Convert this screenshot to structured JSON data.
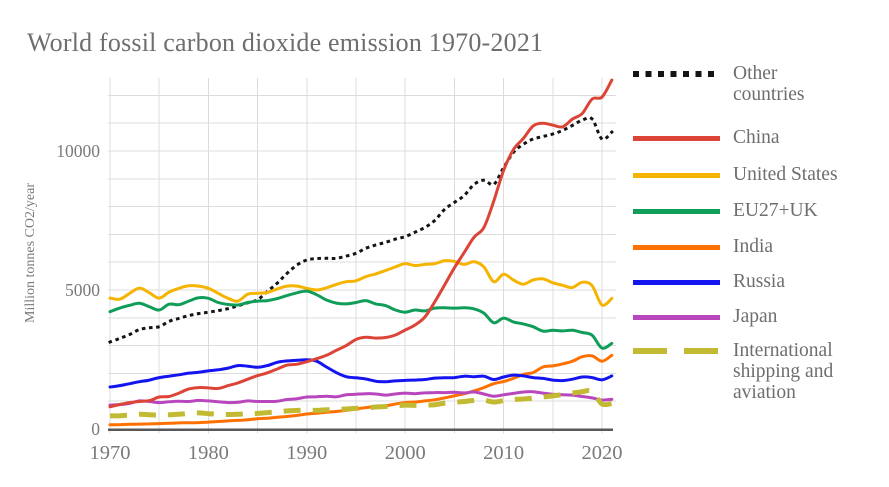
{
  "title": "World fossil carbon dioxide emission 1970-2021",
  "y_axis": {
    "label": "Million tonnes CO2/year",
    "ticks": [
      0,
      5000,
      10000
    ]
  },
  "x_axis": {
    "ticks": [
      1970,
      1980,
      1990,
      2000,
      2010,
      2020
    ]
  },
  "chart_data": {
    "type": "line",
    "title": "World fossil carbon dioxide emission 1970-2021",
    "xlabel": "",
    "ylabel": "Million tonnes CO2/year",
    "x_range": [
      1970,
      2021
    ],
    "ylim": [
      0,
      12620
    ],
    "grid": true,
    "legend_position": "right",
    "axis_color": "#58585a",
    "grid_color": "#dcdcdc",
    "text_color": "#7a7a7a",
    "years_start": 1970,
    "series": [
      {
        "name": "Other countries",
        "color": "#141414",
        "style": "dotted",
        "values": [
          3130,
          3260,
          3400,
          3580,
          3640,
          3680,
          3870,
          3980,
          4080,
          4150,
          4200,
          4260,
          4330,
          4430,
          4540,
          4650,
          4950,
          5250,
          5600,
          5900,
          6080,
          6130,
          6140,
          6140,
          6220,
          6320,
          6500,
          6620,
          6715,
          6830,
          6920,
          7080,
          7250,
          7500,
          7900,
          8150,
          8400,
          8800,
          8950,
          8800,
          9400,
          9950,
          10240,
          10430,
          10520,
          10610,
          10740,
          10920,
          11110,
          11150,
          10430,
          10680
        ]
      },
      {
        "name": "China",
        "color": "#dc4437",
        "style": "solid",
        "values": [
          800,
          880,
          950,
          990,
          1020,
          1150,
          1170,
          1290,
          1440,
          1490,
          1480,
          1460,
          1560,
          1660,
          1790,
          1920,
          2020,
          2160,
          2300,
          2330,
          2420,
          2530,
          2650,
          2830,
          3000,
          3220,
          3300,
          3270,
          3290,
          3380,
          3560,
          3740,
          4030,
          4570,
          5180,
          5800,
          6350,
          6900,
          7250,
          8200,
          9300,
          10050,
          10450,
          10900,
          11000,
          10930,
          10870,
          11150,
          11350,
          11870,
          11940,
          12550
        ]
      },
      {
        "name": "United States",
        "color": "#f5b400",
        "style": "solid",
        "values": [
          4710,
          4670,
          4880,
          5070,
          4900,
          4710,
          4920,
          5060,
          5150,
          5140,
          5060,
          4880,
          4700,
          4600,
          4850,
          4880,
          4910,
          5040,
          5140,
          5140,
          5060,
          5000,
          5080,
          5200,
          5300,
          5330,
          5480,
          5580,
          5700,
          5830,
          5950,
          5880,
          5920,
          5950,
          6050,
          6030,
          5920,
          6020,
          5830,
          5300,
          5570,
          5360,
          5210,
          5360,
          5400,
          5260,
          5170,
          5090,
          5280,
          5150,
          4460,
          4700
        ]
      },
      {
        "name": "EU27+UK",
        "color": "#109d58",
        "style": "solid",
        "values": [
          4220,
          4350,
          4450,
          4520,
          4400,
          4280,
          4490,
          4470,
          4600,
          4720,
          4700,
          4550,
          4480,
          4460,
          4550,
          4600,
          4620,
          4690,
          4800,
          4900,
          4960,
          4830,
          4640,
          4530,
          4500,
          4550,
          4620,
          4500,
          4440,
          4280,
          4200,
          4280,
          4250,
          4350,
          4360,
          4350,
          4360,
          4320,
          4170,
          3820,
          3990,
          3850,
          3780,
          3680,
          3520,
          3550,
          3530,
          3550,
          3470,
          3370,
          2910,
          3080
        ]
      },
      {
        "name": "India",
        "color": "#fe7100",
        "style": "solid",
        "values": [
          150,
          160,
          170,
          175,
          185,
          195,
          205,
          220,
          225,
          230,
          250,
          270,
          290,
          310,
          330,
          370,
          390,
          420,
          450,
          490,
          540,
          570,
          600,
          630,
          670,
          720,
          770,
          810,
          830,
          900,
          950,
          970,
          1010,
          1050,
          1120,
          1190,
          1270,
          1370,
          1490,
          1630,
          1710,
          1820,
          1960,
          2030,
          2230,
          2270,
          2340,
          2440,
          2600,
          2630,
          2440,
          2650
        ]
      },
      {
        "name": "Russia",
        "color": "#1414f0",
        "style": "solid",
        "values": [
          1510,
          1560,
          1630,
          1700,
          1760,
          1850,
          1900,
          1950,
          2010,
          2040,
          2090,
          2130,
          2190,
          2280,
          2260,
          2220,
          2280,
          2400,
          2450,
          2470,
          2490,
          2440,
          2230,
          2030,
          1880,
          1840,
          1800,
          1720,
          1700,
          1730,
          1750,
          1760,
          1780,
          1830,
          1840,
          1850,
          1900,
          1880,
          1900,
          1780,
          1870,
          1940,
          1910,
          1850,
          1820,
          1760,
          1740,
          1790,
          1870,
          1850,
          1770,
          1910
        ]
      },
      {
        "name": "Japan",
        "color": "#b847bd",
        "style": "solid",
        "values": [
          860,
          880,
          920,
          1010,
          990,
          950,
          980,
          1000,
          990,
          1030,
          1010,
          980,
          950,
          960,
          1010,
          990,
          990,
          1000,
          1060,
          1090,
          1150,
          1160,
          1180,
          1160,
          1230,
          1250,
          1270,
          1260,
          1220,
          1260,
          1290,
          1270,
          1300,
          1310,
          1310,
          1320,
          1300,
          1330,
          1260,
          1180,
          1230,
          1280,
          1330,
          1340,
          1290,
          1250,
          1230,
          1220,
          1170,
          1120,
          1040,
          1070
        ]
      },
      {
        "name": "International shipping and aviation",
        "color": "#c2ba32",
        "style": "dashed",
        "values": [
          470,
          480,
          500,
          530,
          510,
          500,
          510,
          530,
          560,
          580,
          550,
          530,
          520,
          530,
          550,
          560,
          590,
          620,
          650,
          670,
          680,
          670,
          690,
          700,
          720,
          740,
          760,
          790,
          810,
          830,
          860,
          850,
          860,
          870,
          930,
          960,
          990,
          1030,
          1040,
          970,
          1020,
          1060,
          1080,
          1110,
          1150,
          1190,
          1240,
          1290,
          1340,
          1360,
          900,
          920
        ]
      }
    ]
  },
  "legend": {
    "items": [
      {
        "label": "Other countries"
      },
      {
        "label": "China"
      },
      {
        "label": "United States"
      },
      {
        "label": "EU27+UK"
      },
      {
        "label": "India"
      },
      {
        "label": "Russia"
      },
      {
        "label": "Japan"
      },
      {
        "label": "International shipping and aviation"
      }
    ]
  }
}
